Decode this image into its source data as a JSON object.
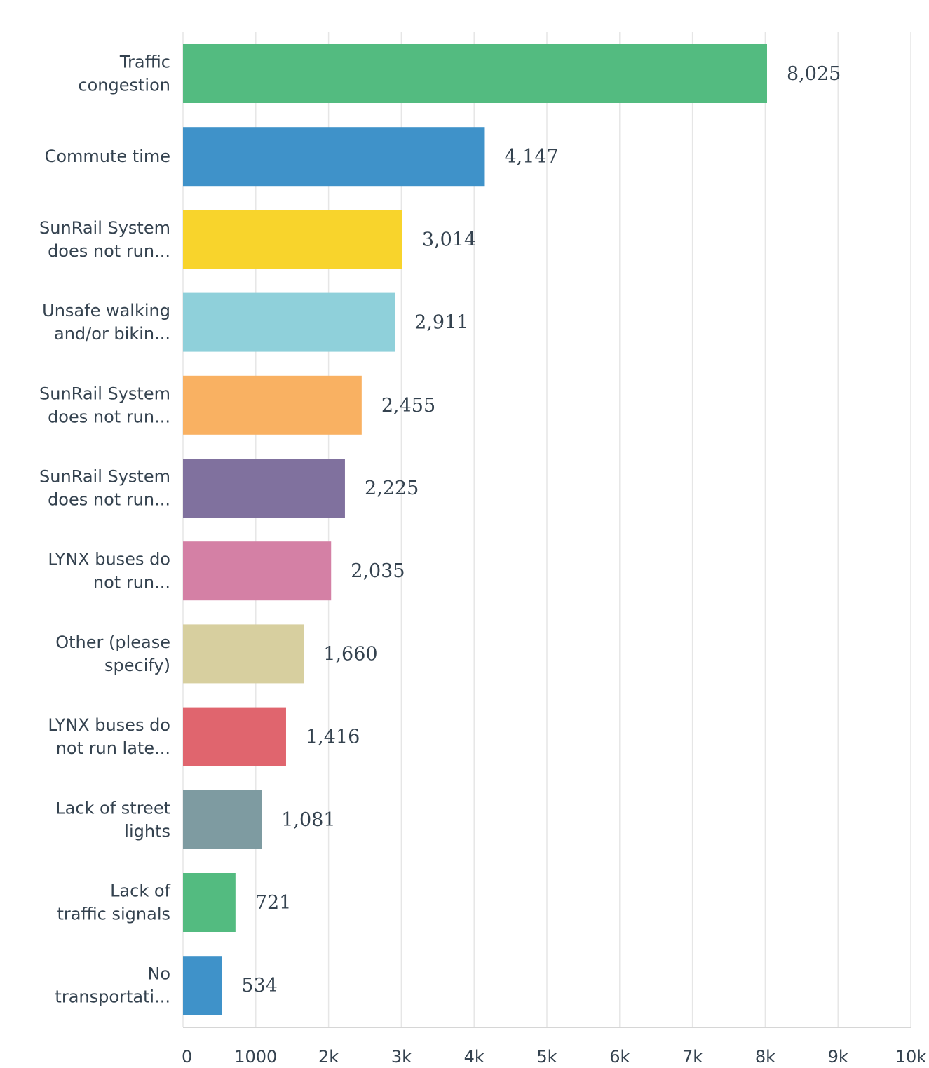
{
  "chart_data": {
    "type": "bar",
    "orientation": "horizontal",
    "categories": [
      [
        "Traffic",
        "congestion"
      ],
      [
        "Commute time"
      ],
      [
        "SunRail System",
        "does not run..."
      ],
      [
        "Unsafe walking",
        "and/or bikin..."
      ],
      [
        "SunRail System",
        "does not run..."
      ],
      [
        "SunRail System",
        "does not run..."
      ],
      [
        "LYNX buses do",
        "not run..."
      ],
      [
        "Other (please",
        "specify)"
      ],
      [
        "LYNX buses do",
        "not run late..."
      ],
      [
        "Lack of street",
        "lights"
      ],
      [
        "Lack of",
        "traffic signals"
      ],
      [
        "No",
        "transportati..."
      ]
    ],
    "values": [
      8025,
      4147,
      3014,
      2911,
      2455,
      2225,
      2035,
      1660,
      1416,
      1081,
      721,
      534
    ],
    "value_labels": [
      "8,025",
      "4,147",
      "3,014",
      "2,911",
      "2,455",
      "2,225",
      "2,035",
      "1,660",
      "1,416",
      "1,081",
      "721",
      "534"
    ],
    "colors": [
      "#53bb80",
      "#3f92c9",
      "#f8d42c",
      "#8fd0da",
      "#f9b162",
      "#80719e",
      "#d480a5",
      "#d7cf9f",
      "#e0656e",
      "#7e9ba1",
      "#53bb80",
      "#3f92c9"
    ],
    "xlim": [
      0,
      10000
    ],
    "xticks": [
      0,
      1000,
      2000,
      3000,
      4000,
      5000,
      6000,
      7000,
      8000,
      9000,
      10000
    ],
    "xtick_labels": [
      "0",
      "1000",
      "2k",
      "3k",
      "4k",
      "5k",
      "6k",
      "7k",
      "8k",
      "9k",
      "10k"
    ],
    "grid": true,
    "title": "",
    "xlabel": "",
    "ylabel": ""
  }
}
